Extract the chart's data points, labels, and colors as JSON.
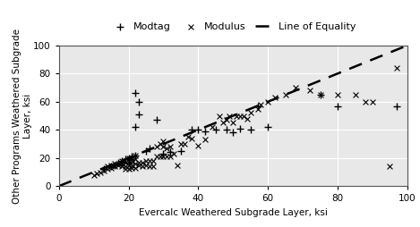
{
  "modtag_x": [
    13,
    15,
    16,
    17,
    18,
    18,
    19,
    20,
    20,
    21,
    22,
    22,
    22,
    23,
    23,
    25,
    26,
    28,
    30,
    32,
    35,
    38,
    40,
    42,
    45,
    48,
    50,
    52,
    55,
    57,
    60,
    75,
    80,
    97
  ],
  "modtag_y": [
    12,
    14,
    15,
    17,
    17,
    18,
    19,
    17,
    20,
    21,
    22,
    42,
    66,
    51,
    60,
    25,
    27,
    47,
    23,
    24,
    25,
    40,
    40,
    39,
    40,
    40,
    38,
    41,
    40,
    57,
    42,
    65,
    57,
    57
  ],
  "modulus_x": [
    10,
    11,
    12,
    13,
    14,
    14,
    15,
    15,
    16,
    16,
    17,
    17,
    18,
    18,
    18,
    19,
    19,
    19,
    20,
    20,
    20,
    20,
    21,
    21,
    21,
    21,
    22,
    22,
    22,
    22,
    23,
    23,
    24,
    24,
    25,
    25,
    26,
    26,
    27,
    27,
    28,
    28,
    29,
    29,
    30,
    30,
    30,
    31,
    31,
    32,
    32,
    33,
    34,
    35,
    36,
    37,
    38,
    40,
    42,
    44,
    46,
    47,
    48,
    49,
    50,
    51,
    52,
    53,
    54,
    55,
    57,
    58,
    60,
    62,
    65,
    68,
    72,
    75,
    80,
    85,
    88,
    90,
    95,
    97
  ],
  "modulus_y": [
    8,
    9,
    10,
    11,
    12,
    14,
    13,
    15,
    14,
    16,
    15,
    16,
    14,
    16,
    18,
    12,
    14,
    17,
    12,
    15,
    18,
    20,
    13,
    15,
    18,
    20,
    13,
    16,
    19,
    22,
    15,
    17,
    14,
    17,
    15,
    18,
    14,
    18,
    14,
    18,
    21,
    28,
    21,
    30,
    21,
    28,
    32,
    21,
    27,
    21,
    28,
    23,
    15,
    30,
    30,
    35,
    34,
    29,
    33,
    42,
    50,
    45,
    47,
    50,
    45,
    50,
    50,
    50,
    48,
    52,
    55,
    58,
    60,
    63,
    65,
    70,
    68,
    65,
    65,
    65,
    60,
    60,
    14,
    84
  ],
  "xlabel": "Evercalc Weathered Subgrade Layer, ksi",
  "ylabel": "Other Programs Weathered Subgrade\nLayer, ksi",
  "xlim": [
    0,
    100
  ],
  "ylim": [
    0,
    100
  ],
  "xticks": [
    0,
    20,
    40,
    60,
    80,
    100
  ],
  "yticks": [
    0,
    20,
    40,
    60,
    80,
    100
  ],
  "equality_line": [
    0,
    100
  ],
  "legend_labels": [
    "Modtag",
    "Modulus",
    "Line of Equality"
  ],
  "marker_color": "black",
  "line_color": "black",
  "plot_bg_color": "#e8e8e8",
  "fig_bg_color": "#ffffff",
  "grid_color": "white",
  "label_fontsize": 7.5,
  "tick_fontsize": 7.5,
  "legend_fontsize": 8
}
